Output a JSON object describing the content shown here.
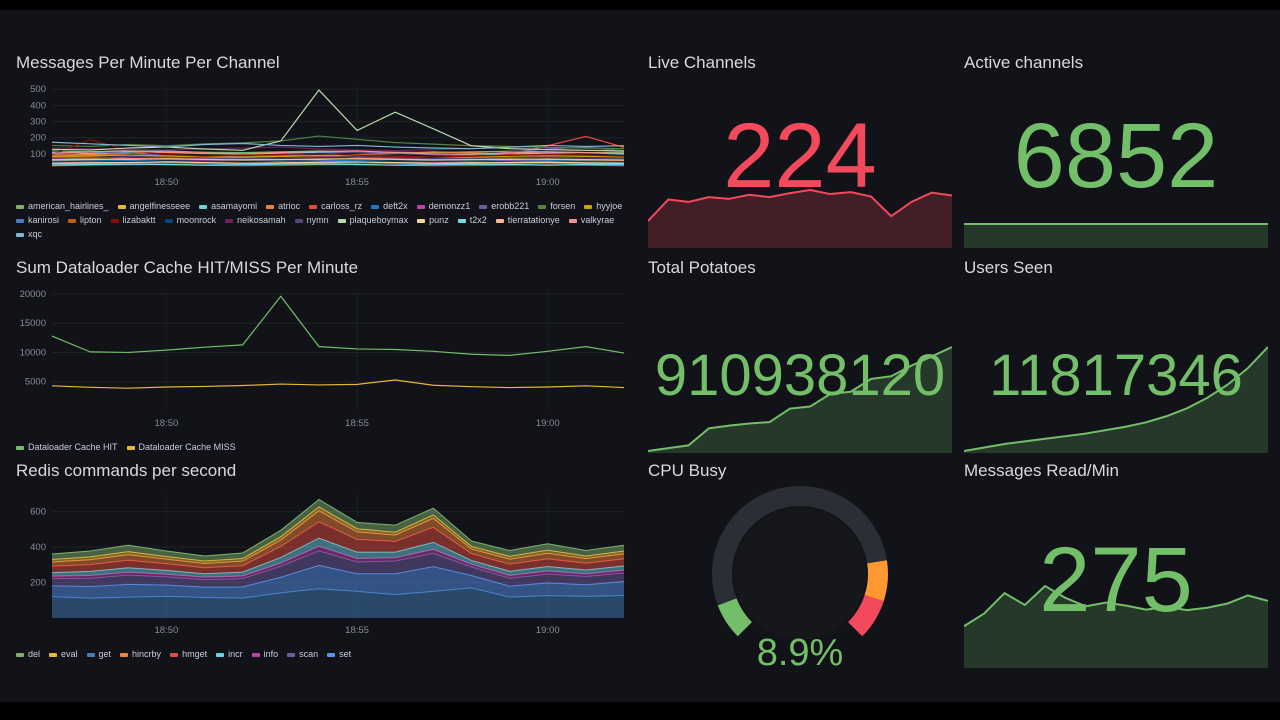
{
  "panels": {
    "messages_per_minute": {
      "title": "Messages Per Minute Per Channel"
    },
    "dataloader": {
      "title": "Sum Dataloader Cache HIT/MISS Per Minute"
    },
    "redis": {
      "title": "Redis commands per second"
    },
    "live_channels": {
      "title": "Live Channels",
      "value": "224",
      "color": "#F2495C"
    },
    "active_channels": {
      "title": "Active channels",
      "value": "6852",
      "color": "#73BF69"
    },
    "total_potatoes": {
      "title": "Total Potatoes",
      "value": "910938120",
      "color": "#73BF69"
    },
    "users_seen": {
      "title": "Users Seen",
      "value": "11817346",
      "color": "#73BF69"
    },
    "cpu_busy": {
      "title": "CPU Busy",
      "value": "8.9%",
      "color": "#73BF69"
    },
    "messages_read": {
      "title": "Messages Read/Min",
      "value": "275",
      "color": "#73BF69"
    }
  },
  "chart_data": [
    {
      "id": "messages",
      "type": "line",
      "title": "Messages Per Minute Per Channel",
      "ylim": [
        0,
        520
      ],
      "yticks": [
        100,
        200,
        300,
        400,
        500
      ],
      "xticks": [
        {
          "i": 3,
          "label": "18:50"
        },
        {
          "i": 8,
          "label": "18:55"
        },
        {
          "i": 13,
          "label": "19:00"
        }
      ],
      "series": [
        {
          "name": "american_hairlines_",
          "color": "#7EB26D",
          "values": [
            118,
            112,
            120,
            115,
            110,
            108,
            112,
            118,
            114,
            110,
            108,
            112,
            116,
            112,
            108,
            110
          ]
        },
        {
          "name": "angelfinesseee",
          "color": "#EAB839",
          "values": [
            66,
            70,
            64,
            68,
            72,
            66,
            62,
            66,
            70,
            66,
            62,
            64,
            68,
            66,
            62,
            60
          ]
        },
        {
          "name": "asamayomi",
          "color": "#6ED0E0",
          "values": [
            108,
            102,
            112,
            118,
            108,
            98,
            104,
            110,
            114,
            104,
            98,
            94,
            100,
            104,
            108,
            98
          ]
        },
        {
          "name": "atrioc",
          "color": "#EF843C",
          "values": [
            92,
            96,
            102,
            112,
            106,
            96,
            90,
            86,
            96,
            102,
            112,
            106,
            100,
            94,
            88,
            84
          ]
        },
        {
          "name": "carloss_rz",
          "color": "#E24D42",
          "values": [
            78,
            82,
            72,
            66,
            72,
            78,
            84,
            88,
            78,
            72,
            66,
            72,
            98,
            150,
            208,
            140
          ]
        },
        {
          "name": "deft2x",
          "color": "#1F78C1",
          "values": [
            56,
            60,
            58,
            64,
            66,
            60,
            54,
            58,
            60,
            64,
            58,
            54,
            60,
            58,
            54,
            50
          ]
        },
        {
          "name": "demonzz1",
          "color": "#BA43A9",
          "values": [
            44,
            50,
            46,
            52,
            56,
            60,
            56,
            54,
            50,
            46,
            44,
            50,
            56,
            52,
            46,
            44
          ]
        },
        {
          "name": "erobb221",
          "color": "#705DA0",
          "values": [
            98,
            112,
            104,
            90,
            86,
            82,
            92,
            102,
            112,
            104,
            94,
            90,
            112,
            130,
            142,
            120
          ]
        },
        {
          "name": "forsen",
          "color": "#508642",
          "values": [
            152,
            146,
            158,
            150,
            162,
            168,
            180,
            210,
            190,
            170,
            160,
            150,
            146,
            140,
            136,
            132
          ]
        },
        {
          "name": "hyyjoe",
          "color": "#CCA300",
          "values": [
            84,
            88,
            92,
            86,
            82,
            80,
            84,
            90,
            92,
            86,
            80,
            78,
            84,
            88,
            84,
            80
          ]
        },
        {
          "name": "kanirosi",
          "color": "#447EBC",
          "values": [
            36,
            40,
            42,
            44,
            40,
            36,
            38,
            42,
            44,
            40,
            36,
            38,
            40,
            42,
            40,
            36
          ]
        },
        {
          "name": "lipton",
          "color": "#C15C17",
          "values": [
            26,
            30,
            32,
            34,
            30,
            26,
            28,
            32,
            34,
            30,
            26,
            28,
            30,
            32,
            30,
            26
          ]
        },
        {
          "name": "lizabaktt",
          "color": "#890F02",
          "values": [
            96,
            188,
            122,
            96,
            86,
            92,
            96,
            102,
            92,
            86,
            80,
            86,
            92,
            96,
            92,
            86
          ]
        },
        {
          "name": "moonrock",
          "color": "#0A437C",
          "values": [
            50,
            56,
            52,
            48,
            52,
            56,
            60,
            52,
            48,
            50,
            54,
            56,
            50,
            48,
            52,
            50
          ]
        },
        {
          "name": "neikosamah",
          "color": "#6D1F62",
          "values": [
            138,
            132,
            128,
            124,
            130,
            136,
            142,
            130,
            124,
            120,
            126,
            132,
            136,
            126,
            120,
            124
          ]
        },
        {
          "name": "nymn",
          "color": "#584477",
          "values": [
            72,
            76,
            82,
            78,
            72,
            70,
            74,
            80,
            82,
            76,
            70,
            72,
            78,
            80,
            74,
            70
          ]
        },
        {
          "name": "plaqueboymax",
          "color": "#B7DBAB",
          "values": [
            128,
            124,
            136,
            142,
            130,
            122,
            180,
            495,
            245,
            358,
            255,
            150,
            132,
            126,
            122,
            118
          ]
        },
        {
          "name": "punz",
          "color": "#F4D598",
          "values": [
            42,
            44,
            46,
            50,
            46,
            42,
            44,
            48,
            50,
            46,
            42,
            44,
            46,
            48,
            44,
            42
          ]
        },
        {
          "name": "t2x2",
          "color": "#70DBED",
          "values": [
            30,
            34,
            36,
            34,
            30,
            32,
            36,
            38,
            34,
            30,
            32,
            36,
            34,
            30,
            34,
            32
          ]
        },
        {
          "name": "tierratationye",
          "color": "#F9BA8F",
          "values": [
            62,
            64,
            68,
            70,
            66,
            62,
            64,
            68,
            70,
            66,
            62,
            64,
            66,
            68,
            64,
            62
          ]
        },
        {
          "name": "valkyrae",
          "color": "#F29191",
          "values": [
            104,
            112,
            118,
            108,
            102,
            100,
            108,
            114,
            118,
            108,
            100,
            98,
            106,
            112,
            108,
            102
          ]
        },
        {
          "name": "xqc",
          "color": "#82B5D8",
          "values": [
            172,
            162,
            152,
            142,
            158,
            164,
            152,
            146,
            152,
            142,
            136,
            132,
            142,
            152,
            146,
            150
          ]
        }
      ]
    },
    {
      "id": "dataloader",
      "type": "line",
      "title": "Sum Dataloader Cache HIT/MISS Per Minute",
      "ylim": [
        0,
        20500
      ],
      "yticks": [
        5000,
        10000,
        15000,
        20000
      ],
      "xticks": [
        {
          "i": 3,
          "label": "18:50"
        },
        {
          "i": 8,
          "label": "18:55"
        },
        {
          "i": 13,
          "label": "19:00"
        }
      ],
      "series": [
        {
          "name": "Dataloader Cache HIT",
          "color": "#73BF69",
          "values": [
            12800,
            10100,
            10000,
            10400,
            10900,
            11300,
            19600,
            11000,
            10600,
            10500,
            10200,
            9700,
            9500,
            10200,
            11000,
            9900
          ]
        },
        {
          "name": "Dataloader Cache MISS",
          "color": "#EAB839",
          "values": [
            4300,
            4050,
            3900,
            4100,
            4200,
            4350,
            4600,
            4450,
            4550,
            5300,
            4400,
            4150,
            4000,
            4100,
            4300,
            4000
          ]
        }
      ]
    },
    {
      "id": "redis",
      "type": "area-stacked",
      "title": "Redis commands per second",
      "ylim": [
        0,
        700
      ],
      "yticks": [
        200,
        400,
        600
      ],
      "xticks": [
        {
          "i": 3,
          "label": "18:50"
        },
        {
          "i": 8,
          "label": "18:55"
        },
        {
          "i": 13,
          "label": "19:00"
        }
      ],
      "stack_order": [
        2,
        8,
        7,
        6,
        5,
        4,
        3,
        1,
        0
      ],
      "series": [
        {
          "name": "del",
          "color": "#7EB26D",
          "values": [
            30,
            33,
            36,
            31,
            28,
            31,
            36,
            42,
            36,
            40,
            38,
            31,
            33,
            36,
            31,
            33
          ]
        },
        {
          "name": "eval",
          "color": "#EAB839",
          "values": [
            15,
            16,
            18,
            15,
            14,
            15,
            19,
            22,
            18,
            16,
            20,
            15,
            16,
            18,
            15,
            16
          ]
        },
        {
          "name": "get",
          "color": "#447EBC",
          "values": [
            120,
            112,
            118,
            122,
            116,
            112,
            142,
            165,
            150,
            132,
            150,
            170,
            118,
            126,
            122,
            126
          ]
        },
        {
          "name": "hincrby",
          "color": "#EF843C",
          "values": [
            24,
            28,
            31,
            26,
            24,
            26,
            36,
            62,
            42,
            36,
            50,
            26,
            28,
            31,
            26,
            28
          ]
        },
        {
          "name": "hmget",
          "color": "#E24D42",
          "values": [
            36,
            38,
            42,
            37,
            34,
            36,
            62,
            92,
            72,
            60,
            85,
            38,
            40,
            43,
            38,
            40
          ]
        },
        {
          "name": "incr",
          "color": "#6ED0E0",
          "values": [
            20,
            23,
            26,
            22,
            20,
            22,
            32,
            46,
            36,
            32,
            40,
            22,
            24,
            26,
            22,
            24
          ]
        },
        {
          "name": "info",
          "color": "#BA43A9",
          "values": [
            14,
            16,
            16,
            15,
            14,
            15,
            18,
            26,
            20,
            18,
            22,
            15,
            16,
            17,
            15,
            16
          ]
        },
        {
          "name": "scan",
          "color": "#705DA0",
          "values": [
            40,
            46,
            52,
            46,
            42,
            46,
            62,
            82,
            66,
            72,
            75,
            48,
            44,
            50,
            46,
            48
          ]
        },
        {
          "name": "set",
          "color": "#5794F2",
          "values": [
            62,
            66,
            72,
            64,
            58,
            64,
            88,
            132,
            100,
            118,
            140,
            70,
            62,
            72,
            66,
            80
          ]
        }
      ]
    },
    {
      "id": "live-spark",
      "type": "sparkline",
      "color": "#F2495C",
      "ymin": 0,
      "values": [
        105,
        195,
        185,
        205,
        198,
        215,
        205,
        222,
        235,
        218,
        226,
        208,
        125,
        185,
        224,
        212
      ]
    },
    {
      "id": "active-spark",
      "type": "sparkline",
      "color": "#73BF69",
      "ymin": 0,
      "values": [
        6840,
        6845,
        6842,
        6848,
        6850,
        6846,
        6851,
        6849,
        6852,
        6850,
        6848,
        6851,
        6849,
        6852,
        6850,
        6852
      ]
    },
    {
      "id": "potatoes-spark",
      "type": "sparkline",
      "color": "#73BF69",
      "values": [
        896200000,
        896600000,
        897000000,
        899400000,
        899800000,
        900100000,
        900300000,
        902200000,
        902500000,
        904300000,
        904600000,
        906400000,
        906800000,
        908300000,
        909600000,
        910938120
      ]
    },
    {
      "id": "users-spark",
      "type": "sparkline",
      "color": "#73BF69",
      "values": [
        11698000,
        11702000,
        11706000,
        11709000,
        11712000,
        11715000,
        11718000,
        11722000,
        11726000,
        11731000,
        11738000,
        11747000,
        11759000,
        11774000,
        11793000,
        11817346
      ]
    },
    {
      "id": "cpu-gauge",
      "type": "gauge",
      "value": 8.9,
      "min": 0,
      "max": 100,
      "unit": "%",
      "track_color": "#2b2e34",
      "thresholds": [
        {
          "value": 0,
          "color": "#73BF69"
        },
        {
          "value": 80,
          "color": "#FF9830"
        },
        {
          "value": 90,
          "color": "#F2495C"
        }
      ]
    },
    {
      "id": "read-spark",
      "type": "sparkline",
      "color": "#73BF69",
      "ymin": 0,
      "values": [
        168,
        222,
        308,
        258,
        338,
        288,
        252,
        268,
        255,
        238,
        250,
        236,
        246,
        264,
        298,
        275
      ]
    }
  ]
}
